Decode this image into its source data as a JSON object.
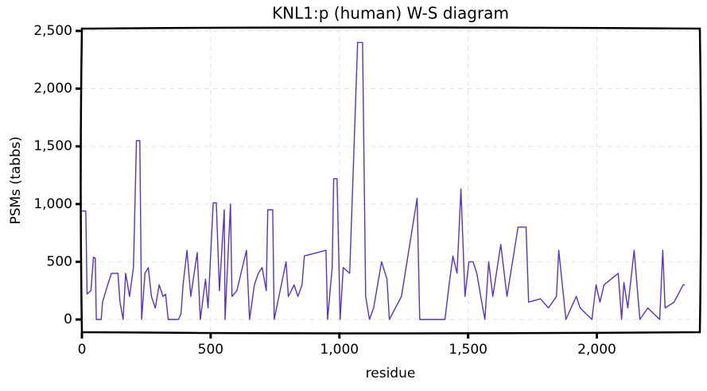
{
  "chart_data": {
    "type": "line",
    "title": "KNL1:p (human) W-S diagram",
    "x_label": "residue",
    "y_label": "PSMs (tabbs)",
    "grid": true,
    "xlim": [
      0,
      2400
    ],
    "ylim": [
      -110,
      2520
    ],
    "xticks": [
      0,
      500,
      {
        "value": 1000,
        "label": "1,000"
      },
      {
        "value": 1500,
        "label": "1,500"
      },
      {
        "value": 2000,
        "label": "2,000"
      }
    ],
    "yticks": [
      0,
      500,
      {
        "value": 1000,
        "label": "1,000"
      },
      {
        "value": 1500,
        "label": "1,500"
      },
      {
        "value": 2000,
        "label": "2,000"
      },
      {
        "value": 2500,
        "label": "2,500"
      }
    ],
    "x": [
      0,
      15,
      20,
      35,
      45,
      52,
      56,
      75,
      80,
      100,
      115,
      140,
      148,
      160,
      170,
      185,
      200,
      212,
      225,
      232,
      245,
      258,
      270,
      285,
      300,
      315,
      325,
      335,
      375,
      385,
      393,
      408,
      423,
      448,
      460,
      480,
      490,
      510,
      522,
      534,
      553,
      556,
      577,
      583,
      602,
      639,
      651,
      670,
      685,
      700,
      716,
      722,
      741,
      747,
      793,
      802,
      824,
      839,
      855,
      864,
      948,
      954,
      972,
      978,
      991,
      1003,
      1015,
      1040,
      1071,
      1090,
      1102,
      1117,
      1133,
      1164,
      1185,
      1194,
      1241,
      1302,
      1312,
      1410,
      1426,
      1441,
      1457,
      1472,
      1488,
      1503,
      1519,
      1534,
      1549,
      1565,
      1580,
      1596,
      1627,
      1651,
      1694,
      1725,
      1735,
      1781,
      1812,
      1843,
      1852,
      1880,
      1920,
      1935,
      1981,
      1997,
      2012,
      2028,
      2083,
      2096,
      2105,
      2120,
      2145,
      2167,
      2198,
      2244,
      2256,
      2265,
      2300,
      2335,
      2342
    ],
    "series": [
      {
        "name": "PSMs",
        "color": "#5b2fc9",
        "values": [
          940,
          940,
          220,
          250,
          540,
          530,
          0,
          0,
          150,
          300,
          400,
          400,
          150,
          0,
          400,
          200,
          450,
          1550,
          1550,
          0,
          400,
          450,
          200,
          100,
          300,
          200,
          220,
          0,
          0,
          50,
          300,
          600,
          200,
          580,
          0,
          350,
          100,
          1010,
          1010,
          250,
          950,
          0,
          1000,
          200,
          250,
          600,
          0,
          300,
          400,
          450,
          250,
          950,
          950,
          0,
          500,
          200,
          300,
          200,
          300,
          550,
          600,
          0,
          450,
          1220,
          1220,
          0,
          450,
          400,
          2400,
          2400,
          200,
          0,
          100,
          500,
          350,
          0,
          200,
          1050,
          0,
          0,
          300,
          550,
          400,
          1130,
          200,
          500,
          500,
          400,
          200,
          0,
          500,
          200,
          650,
          200,
          800,
          800,
          150,
          180,
          100,
          200,
          600,
          0,
          200,
          100,
          0,
          300,
          150,
          300,
          400,
          0,
          320,
          100,
          600,
          0,
          100,
          0,
          600,
          100,
          150,
          300,
          300
        ]
      }
    ]
  }
}
